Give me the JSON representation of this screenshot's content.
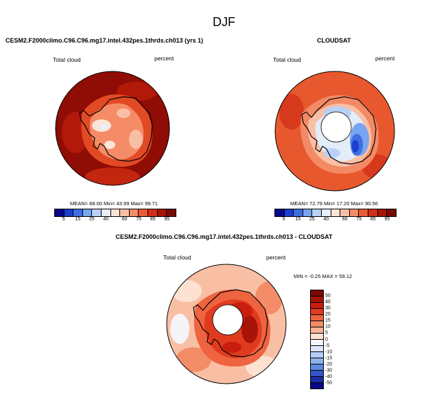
{
  "figure": {
    "season": "DJF",
    "panels": [
      {
        "title": "CESM2.F2000climo.C96.C96.mg17.intel.432pes.1thrds.ch013 (yrs 1)",
        "variable": "Total cloud",
        "units": "percent",
        "stats": {
          "mean_label": "MEAN=",
          "mean": "88.00",
          "min_label": "Min=",
          "min": "43.99",
          "max_label": "Max=",
          "max": "99.71"
        }
      },
      {
        "title": "CLOUDSAT",
        "variable": "Total cloud",
        "units": "percent",
        "stats": {
          "mean_label": "MEAN=",
          "mean": "72.79",
          "min_label": "Min=",
          "min": "17.20",
          "max_label": "Max=",
          "max": "90.56"
        }
      },
      {
        "title": "CESM2.F2000climo.C96.C96.mg17.intel.432pes.1thrds.ch013 - CLOUDSAT",
        "variable": "Total cloud",
        "units": "percent",
        "stats_line": "MIN = -0.25 MAX = 59.12"
      }
    ]
  },
  "colorbar_abs": {
    "ticks": [
      "5",
      "15",
      "25",
      "40",
      "60",
      "75",
      "85",
      "95"
    ],
    "colors": [
      "#08088a",
      "#1c3ecf",
      "#3f6ee0",
      "#79a4ef",
      "#b8d1f7",
      "#e9eef8",
      "#fde4d6",
      "#f9bfa5",
      "#f48c67",
      "#ea5a33",
      "#d42e18",
      "#a81308",
      "#7a0a03"
    ]
  },
  "colorbar_diff": {
    "ticks": [
      "50",
      "40",
      "30",
      "20",
      "15",
      "10",
      "5",
      "0",
      "-5",
      "-10",
      "-15",
      "-20",
      "-30",
      "-40",
      "-50"
    ],
    "colors": [
      "#7a0a03",
      "#a81308",
      "#c91e0e",
      "#e03b1e",
      "#ee6440",
      "#f48c67",
      "#f9b397",
      "#fde2d2",
      "#f5f5f7",
      "#dbe6f8",
      "#b5cef4",
      "#8fb2ec",
      "#5f8ae0",
      "#3556c8",
      "#1a2ea5",
      "#08088a"
    ]
  }
}
